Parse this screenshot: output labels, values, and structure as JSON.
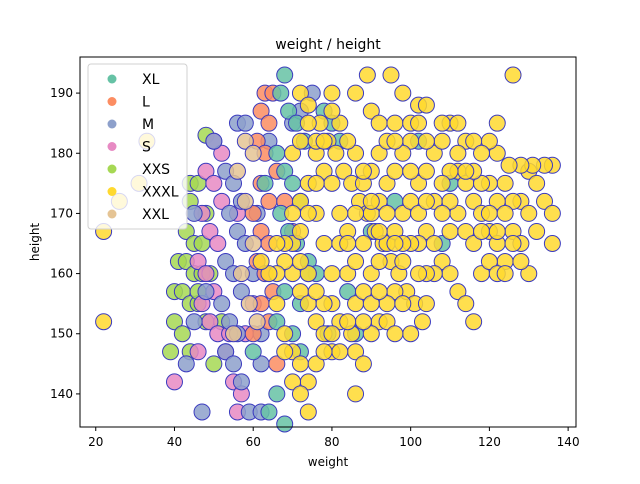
{
  "chart_data": {
    "type": "scatter",
    "title": "weight / height",
    "xlabel": "weight",
    "ylabel": "height",
    "xlim": [
      16,
      142
    ],
    "ylim": [
      134.5,
      196
    ],
    "xticks": [
      20,
      40,
      60,
      80,
      100,
      120,
      140
    ],
    "yticks": [
      140,
      150,
      160,
      170,
      180,
      190
    ],
    "grid": false,
    "legend_position": "top-left",
    "marker_edge_color": "#3b3bbf",
    "draw_order": [
      "XXS",
      "S",
      "M",
      "L",
      "XL",
      "XXL",
      "XXXL"
    ],
    "series": [
      {
        "name": "XL",
        "color": "#66c2a5"
      },
      {
        "name": "L",
        "color": "#fc8d62"
      },
      {
        "name": "M",
        "color": "#8da0cb"
      },
      {
        "name": "S",
        "color": "#e78ac3"
      },
      {
        "name": "XXS",
        "color": "#a6d854"
      },
      {
        "name": "XXXL",
        "color": "#ffd92f"
      },
      {
        "name": "XXL",
        "color": "#e5c494"
      }
    ],
    "points": {
      "XXS": [
        [
          44,
          175
        ],
        [
          46,
          175
        ],
        [
          44,
          172
        ],
        [
          48,
          170
        ],
        [
          43,
          167
        ],
        [
          45,
          165
        ],
        [
          47,
          165
        ],
        [
          41,
          162
        ],
        [
          43,
          162
        ],
        [
          45,
          160
        ],
        [
          47,
          160
        ],
        [
          49,
          160
        ],
        [
          40,
          157
        ],
        [
          42,
          157
        ],
        [
          44,
          155
        ],
        [
          46,
          155
        ],
        [
          48,
          152
        ],
        [
          40,
          152
        ],
        [
          42,
          150
        ],
        [
          44,
          147
        ],
        [
          39,
          147
        ],
        [
          50,
          145
        ],
        [
          48,
          183
        ],
        [
          46,
          157
        ],
        [
          52,
          152
        ]
      ],
      "S": [
        [
          50,
          182
        ],
        [
          52,
          180
        ],
        [
          48,
          177
        ],
        [
          50,
          175
        ],
        [
          52,
          172
        ],
        [
          47,
          170
        ],
        [
          49,
          167
        ],
        [
          51,
          165
        ],
        [
          46,
          162
        ],
        [
          48,
          160
        ],
        [
          50,
          157
        ],
        [
          47,
          155
        ],
        [
          49,
          152
        ],
        [
          51,
          150
        ],
        [
          46,
          147
        ],
        [
          40,
          142
        ],
        [
          53,
          147
        ],
        [
          55,
          142
        ],
        [
          57,
          140
        ],
        [
          58,
          150
        ],
        [
          60,
          155
        ],
        [
          56,
          137
        ],
        [
          54,
          150
        ],
        [
          56,
          170
        ]
      ],
      "M": [
        [
          50,
          182
        ],
        [
          56,
          185
        ],
        [
          58,
          185
        ],
        [
          53,
          177
        ],
        [
          55,
          175
        ],
        [
          57,
          172
        ],
        [
          54,
          170
        ],
        [
          56,
          167
        ],
        [
          58,
          165
        ],
        [
          53,
          162
        ],
        [
          55,
          160
        ],
        [
          57,
          157
        ],
        [
          52,
          155
        ],
        [
          54,
          152
        ],
        [
          56,
          150
        ],
        [
          53,
          147
        ],
        [
          55,
          145
        ],
        [
          57,
          142
        ],
        [
          59,
          137
        ],
        [
          47,
          137
        ],
        [
          43,
          145
        ],
        [
          45,
          152
        ],
        [
          48,
          157
        ],
        [
          62,
          150
        ],
        [
          60,
          160
        ],
        [
          61,
          170
        ],
        [
          64,
          182
        ],
        [
          70,
          185
        ],
        [
          72,
          187
        ],
        [
          75,
          190
        ],
        [
          45,
          170
        ],
        [
          62,
          145
        ],
        [
          62,
          137
        ]
      ],
      "L": [
        [
          63,
          190
        ],
        [
          65,
          190
        ],
        [
          62,
          187
        ],
        [
          64,
          185
        ],
        [
          61,
          182
        ],
        [
          63,
          180
        ],
        [
          66,
          177
        ],
        [
          62,
          175
        ],
        [
          64,
          172
        ],
        [
          60,
          170
        ],
        [
          62,
          167
        ],
        [
          64,
          165
        ],
        [
          61,
          162
        ],
        [
          63,
          160
        ],
        [
          65,
          157
        ],
        [
          62,
          155
        ],
        [
          64,
          152
        ],
        [
          60,
          150
        ],
        [
          68,
          172
        ],
        [
          70,
          167
        ],
        [
          66,
          145
        ]
      ],
      "XL": [
        [
          68,
          193
        ],
        [
          67,
          190
        ],
        [
          69,
          187
        ],
        [
          71,
          185
        ],
        [
          73,
          182
        ],
        [
          66,
          180
        ],
        [
          68,
          177
        ],
        [
          70,
          175
        ],
        [
          72,
          172
        ],
        [
          67,
          170
        ],
        [
          69,
          167
        ],
        [
          71,
          165
        ],
        [
          74,
          162
        ],
        [
          76,
          160
        ],
        [
          68,
          157
        ],
        [
          66,
          152
        ],
        [
          70,
          150
        ],
        [
          72,
          147
        ],
        [
          74,
          160
        ],
        [
          78,
          187
        ],
        [
          80,
          185
        ],
        [
          82,
          182
        ],
        [
          64,
          137
        ],
        [
          66,
          140
        ],
        [
          68,
          135
        ],
        [
          72,
          155
        ],
        [
          84,
          157
        ],
        [
          110,
          175
        ],
        [
          102,
          182
        ],
        [
          108,
          165
        ],
        [
          96,
          172
        ],
        [
          90,
          167
        ],
        [
          86,
          150
        ],
        [
          60,
          147
        ],
        [
          79,
          150
        ],
        [
          63,
          175
        ]
      ],
      "XXL": [
        [
          58,
          182
        ],
        [
          60,
          180
        ],
        [
          56,
          177
        ],
        [
          58,
          172
        ],
        [
          60,
          165
        ],
        [
          57,
          160
        ],
        [
          59,
          155
        ],
        [
          61,
          152
        ],
        [
          55,
          150
        ]
      ],
      "XXXL": [
        [
          22,
          167
        ],
        [
          22,
          152
        ],
        [
          26,
          172
        ],
        [
          31,
          175
        ],
        [
          33,
          182
        ],
        [
          72,
          190
        ],
        [
          74,
          188
        ],
        [
          77,
          185
        ],
        [
          79,
          182
        ],
        [
          81,
          180
        ],
        [
          83,
          177
        ],
        [
          85,
          175
        ],
        [
          87,
          172
        ],
        [
          89,
          170
        ],
        [
          91,
          167
        ],
        [
          93,
          165
        ],
        [
          95,
          162
        ],
        [
          97,
          160
        ],
        [
          99,
          157
        ],
        [
          101,
          155
        ],
        [
          103,
          152
        ],
        [
          85,
          150
        ],
        [
          80,
          147
        ],
        [
          82,
          152
        ],
        [
          86,
          155
        ],
        [
          88,
          157
        ],
        [
          90,
          160
        ],
        [
          92,
          162
        ],
        [
          94,
          165
        ],
        [
          96,
          167
        ],
        [
          98,
          170
        ],
        [
          100,
          172
        ],
        [
          102,
          175
        ],
        [
          104,
          177
        ],
        [
          106,
          180
        ],
        [
          108,
          182
        ],
        [
          110,
          185
        ],
        [
          112,
          177
        ],
        [
          114,
          175
        ],
        [
          116,
          172
        ],
        [
          118,
          170
        ],
        [
          120,
          167
        ],
        [
          122,
          165
        ],
        [
          124,
          162
        ],
        [
          126,
          167
        ],
        [
          128,
          172
        ],
        [
          130,
          177
        ],
        [
          132,
          175
        ],
        [
          134,
          172
        ],
        [
          136,
          170
        ],
        [
          136,
          165
        ],
        [
          136,
          178
        ],
        [
          134,
          178
        ],
        [
          131,
          178
        ],
        [
          128,
          178
        ],
        [
          125,
          178
        ],
        [
          122,
          180
        ],
        [
          122,
          185
        ],
        [
          120,
          182
        ],
        [
          126,
          193
        ],
        [
          89,
          193
        ],
        [
          95,
          193
        ],
        [
          86,
          190
        ],
        [
          98,
          190
        ],
        [
          90,
          187
        ],
        [
          80,
          190
        ],
        [
          92,
          185
        ],
        [
          96,
          185
        ],
        [
          100,
          182
        ],
        [
          104,
          182
        ],
        [
          108,
          185
        ],
        [
          112,
          185
        ],
        [
          114,
          182
        ],
        [
          116,
          182
        ],
        [
          118,
          180
        ],
        [
          78,
          165
        ],
        [
          76,
          170
        ],
        [
          74,
          175
        ],
        [
          72,
          172
        ],
        [
          70,
          160
        ],
        [
          72,
          157
        ],
        [
          74,
          155
        ],
        [
          76,
          152
        ],
        [
          78,
          150
        ],
        [
          80,
          155
        ],
        [
          84,
          160
        ],
        [
          86,
          162
        ],
        [
          88,
          165
        ],
        [
          90,
          170
        ],
        [
          92,
          172
        ],
        [
          94,
          175
        ],
        [
          96,
          177
        ],
        [
          98,
          180
        ],
        [
          100,
          177
        ],
        [
          102,
          170
        ],
        [
          104,
          167
        ],
        [
          106,
          165
        ],
        [
          108,
          162
        ],
        [
          110,
          160
        ],
        [
          112,
          157
        ],
        [
          114,
          155
        ],
        [
          116,
          152
        ],
        [
          118,
          160
        ],
        [
          120,
          162
        ],
        [
          122,
          160
        ],
        [
          124,
          160
        ],
        [
          128,
          165
        ],
        [
          130,
          160
        ],
        [
          132,
          167
        ],
        [
          130,
          170
        ],
        [
          126,
          172
        ],
        [
          124,
          175
        ],
        [
          122,
          172
        ],
        [
          120,
          175
        ],
        [
          118,
          175
        ],
        [
          116,
          177
        ],
        [
          114,
          177
        ],
        [
          112,
          180
        ],
        [
          110,
          177
        ],
        [
          108,
          175
        ],
        [
          106,
          172
        ],
        [
          104,
          172
        ],
        [
          102,
          165
        ],
        [
          100,
          165
        ],
        [
          98,
          162
        ],
        [
          96,
          157
        ],
        [
          94,
          155
        ],
        [
          92,
          152
        ],
        [
          90,
          150
        ],
        [
          88,
          152
        ],
        [
          86,
          147
        ],
        [
          84,
          152
        ],
        [
          82,
          147
        ],
        [
          80,
          150
        ],
        [
          78,
          155
        ],
        [
          76,
          157
        ],
        [
          74,
          160
        ],
        [
          72,
          162
        ],
        [
          70,
          165
        ],
        [
          68,
          162
        ],
        [
          66,
          160
        ],
        [
          68,
          150
        ],
        [
          70,
          147
        ],
        [
          72,
          145
        ],
        [
          74,
          142
        ],
        [
          76,
          145
        ],
        [
          78,
          147
        ],
        [
          100,
          150
        ],
        [
          104,
          155
        ],
        [
          106,
          160
        ],
        [
          110,
          167
        ],
        [
          112,
          170
        ],
        [
          114,
          167
        ],
        [
          116,
          165
        ],
        [
          118,
          167
        ],
        [
          120,
          170
        ],
        [
          122,
          167
        ],
        [
          124,
          170
        ],
        [
          126,
          165
        ],
        [
          128,
          162
        ],
        [
          86,
          140
        ],
        [
          102,
          188
        ],
        [
          104,
          188
        ],
        [
          94,
          152
        ],
        [
          96,
          150
        ],
        [
          98,
          155
        ],
        [
          88,
          145
        ],
        [
          90,
          155
        ],
        [
          92,
          157
        ],
        [
          80,
          160
        ],
        [
          82,
          165
        ],
        [
          84,
          167
        ],
        [
          86,
          170
        ],
        [
          88,
          175
        ],
        [
          90,
          177
        ],
        [
          92,
          180
        ],
        [
          94,
          182
        ],
        [
          96,
          182
        ],
        [
          100,
          185
        ],
        [
          102,
          185
        ],
        [
          78,
          177
        ],
        [
          76,
          180
        ],
        [
          80,
          175
        ],
        [
          82,
          170
        ],
        [
          84,
          165
        ],
        [
          70,
          180
        ],
        [
          72,
          182
        ],
        [
          74,
          185
        ],
        [
          76,
          182
        ],
        [
          110,
          172
        ],
        [
          108,
          170
        ],
        [
          104,
          160
        ],
        [
          102,
          160
        ],
        [
          98,
          165
        ],
        [
          96,
          165
        ],
        [
          94,
          170
        ],
        [
          92,
          167
        ],
        [
          90,
          172
        ],
        [
          88,
          177
        ],
        [
          86,
          180
        ],
        [
          84,
          182
        ],
        [
          82,
          185
        ],
        [
          80,
          187
        ],
        [
          78,
          182
        ],
        [
          76,
          175
        ],
        [
          74,
          170
        ],
        [
          72,
          167
        ],
        [
          70,
          170
        ],
        [
          68,
          165
        ],
        [
          66,
          165
        ],
        [
          64,
          160
        ],
        [
          62,
          162
        ],
        [
          66,
          155
        ],
        [
          68,
          147
        ],
        [
          70,
          142
        ],
        [
          72,
          140
        ],
        [
          74,
          137
        ]
      ]
    }
  }
}
